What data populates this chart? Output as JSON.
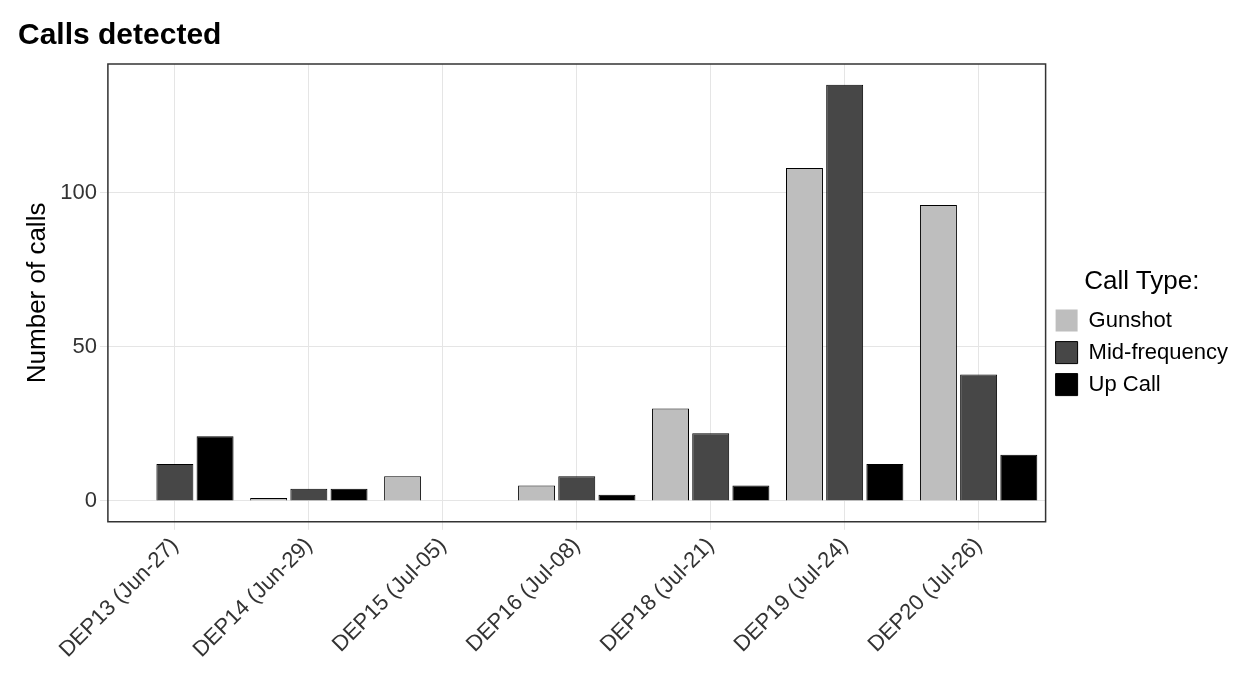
{
  "chart_data": {
    "type": "bar",
    "title": "Calls detected",
    "ylabel": "Number of calls",
    "legend_title": "Call Type:",
    "categories": [
      "DEP13 (Jun-27)",
      "DEP14 (Jun-29)",
      "DEP15 (Jul-05)",
      "DEP16 (Jul-08)",
      "DEP18 (Jul-21)",
      "DEP19 (Jul-24)",
      "DEP20 (Jul-26)"
    ],
    "series": [
      {
        "name": "Gunshot",
        "color": "#bebebe",
        "values": [
          0,
          1,
          8,
          5,
          30,
          108,
          96
        ]
      },
      {
        "name": "Mid-frequency",
        "color": "#474747",
        "values": [
          12,
          4,
          0,
          8,
          22,
          135,
          41
        ]
      },
      {
        "name": "Up Call",
        "color": "#000000",
        "values": [
          21,
          4,
          0,
          2,
          5,
          12,
          15
        ]
      }
    ],
    "ylim": [
      -6.75,
      141.75
    ],
    "yticks": [
      0,
      50,
      100
    ],
    "grid": true,
    "legend": "right"
  }
}
